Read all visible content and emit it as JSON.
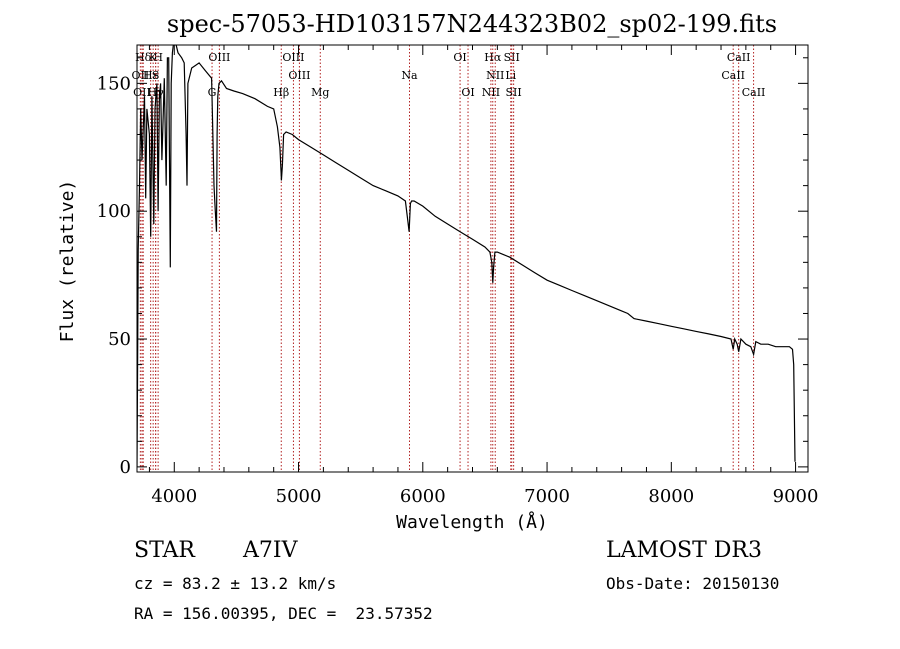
{
  "chart_data": {
    "type": "line",
    "title": "spec-57053-HD103157N244323B02_sp02-199.fits",
    "xlabel": "Wavelength (Å)",
    "ylabel": "Flux (relative)",
    "xlim": [
      3700,
      9100
    ],
    "ylim": [
      -2,
      165
    ],
    "xticks": [
      4000,
      5000,
      6000,
      7000,
      8000,
      9000
    ],
    "yticks": [
      0,
      50,
      100,
      150
    ],
    "series": [
      {
        "name": "spectrum",
        "x": [
          3700,
          3705,
          3710,
          3720,
          3730,
          3740,
          3760,
          3770,
          3780,
          3800,
          3810,
          3820,
          3835,
          3845,
          3860,
          3870,
          3880,
          3890,
          3900,
          3920,
          3935,
          3945,
          3955,
          3968,
          3975,
          3985,
          4000,
          4030,
          4060,
          4080,
          4095,
          4102,
          4110,
          4140,
          4170,
          4200,
          4250,
          4300,
          4320,
          4330,
          4340,
          4345,
          4350,
          4360,
          4380,
          4420,
          4480,
          4550,
          4650,
          4750,
          4800,
          4830,
          4850,
          4860,
          4862,
          4870,
          4880,
          4900,
          4950,
          5000,
          5100,
          5200,
          5300,
          5400,
          5500,
          5600,
          5700,
          5800,
          5860,
          5880,
          5890,
          5895,
          5900,
          5910,
          5930,
          6000,
          6100,
          6200,
          6300,
          6400,
          6500,
          6540,
          6555,
          6563,
          6570,
          6580,
          6600,
          6700,
          6800,
          6900,
          7000,
          7100,
          7200,
          7300,
          7400,
          7500,
          7600,
          7650,
          7700,
          7800,
          7900,
          8000,
          8100,
          8200,
          8300,
          8400,
          8480,
          8498,
          8510,
          8530,
          8542,
          8560,
          8600,
          8640,
          8662,
          8680,
          8720,
          8780,
          8840,
          8900,
          8950,
          8975,
          8985,
          8995
        ],
        "y": [
          0,
          40,
          85,
          110,
          140,
          120,
          145,
          105,
          140,
          130,
          90,
          145,
          95,
          140,
          150,
          100,
          145,
          150,
          120,
          152,
          110,
          160,
          160,
          78,
          150,
          162,
          168,
          162,
          160,
          158,
          130,
          110,
          150,
          156,
          157,
          158,
          155,
          152,
          110,
          100,
          92,
          130,
          145,
          150,
          151,
          148,
          147,
          146,
          144,
          141,
          140,
          133,
          125,
          115,
          112,
          118,
          130,
          131,
          130,
          128,
          125,
          122,
          119,
          116,
          113,
          110,
          108,
          106,
          104,
          96,
          92,
          97,
          103,
          104,
          104,
          102,
          98,
          95,
          92,
          89,
          86,
          84,
          80,
          72,
          78,
          84,
          84,
          82,
          79,
          76,
          73,
          71,
          69,
          67,
          65,
          63,
          61,
          60,
          58,
          57,
          56,
          55,
          54,
          53,
          52,
          51,
          50,
          46,
          50,
          48,
          45,
          50,
          48,
          47,
          44,
          49,
          48,
          48,
          47,
          47,
          47,
          46,
          40,
          2
        ]
      }
    ],
    "lines": [
      {
        "name": "Hδ",
        "x": 3750,
        "row": 1
      },
      {
        "name": "K",
        "x": 3830,
        "row": 1
      },
      {
        "name": "H",
        "x": 3870,
        "row": 1
      },
      {
        "name": "OII",
        "x": 3727,
        "row": 2
      },
      {
        "name": "Hε",
        "x": 3810,
        "row": 2
      },
      {
        "name": "S",
        "x": 3850,
        "row": 2
      },
      {
        "name": "OII",
        "x": 3740,
        "row": 3
      },
      {
        "name": "Hγ",
        "x": 3850,
        "row": 3
      },
      {
        "name": "OIII",
        "x": 4363,
        "row": 1
      },
      {
        "name": "G",
        "x": 4304,
        "row": 3
      },
      {
        "name": "Hβ",
        "x": 4861,
        "row": 3
      },
      {
        "name": "OIII",
        "x": 4959,
        "row": 1
      },
      {
        "name": "OIII",
        "x": 5007,
        "row": 2
      },
      {
        "name": "Mg",
        "x": 5175,
        "row": 3
      },
      {
        "name": "Na",
        "x": 5893,
        "row": 2
      },
      {
        "name": "OI",
        "x": 6300,
        "row": 1
      },
      {
        "name": "OI",
        "x": 6364,
        "row": 3
      },
      {
        "name": "Hα",
        "x": 6563,
        "row": 1
      },
      {
        "name": "SII",
        "x": 6716,
        "row": 1
      },
      {
        "name": "NII",
        "x": 6583,
        "row": 2
      },
      {
        "name": "Li",
        "x": 6708,
        "row": 2
      },
      {
        "name": "NII",
        "x": 6548,
        "row": 3
      },
      {
        "name": "SII",
        "x": 6731,
        "row": 3
      },
      {
        "name": "CaII",
        "x": 8542,
        "row": 1
      },
      {
        "name": "CaII",
        "x": 8498,
        "row": 2
      },
      {
        "name": "CaII",
        "x": 8662,
        "row": 3
      }
    ]
  },
  "info": {
    "class": "STAR",
    "subclass": "A7IV",
    "survey": "LAMOST DR3",
    "cz": "cz = 83.2 ± 13.2 km/s",
    "obsdate": "Obs-Date: 20150130",
    "radec": "RA = 156.00395, DEC =  23.57352"
  }
}
